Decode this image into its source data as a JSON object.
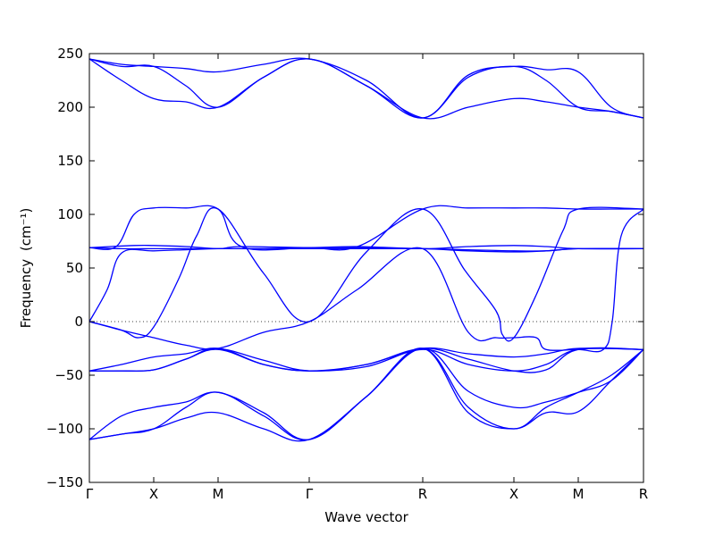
{
  "chart_data": {
    "type": "line",
    "title": "",
    "xlabel": "Wave vector",
    "ylabel": "Frequency",
    "ylabel_unit": "(cm⁻¹)",
    "ylim": [
      -150,
      250
    ],
    "yticks": [
      -150,
      -100,
      -50,
      0,
      50,
      100,
      150,
      200,
      250
    ],
    "xlim": [
      0,
      6.2
    ],
    "xticks": [
      {
        "label": "Γ",
        "pos": 0.0
      },
      {
        "label": "X",
        "pos": 0.72
      },
      {
        "label": "M",
        "pos": 1.44
      },
      {
        "label": "Γ",
        "pos": 2.46
      },
      {
        "label": "R",
        "pos": 3.73
      },
      {
        "label": "X",
        "pos": 4.75
      },
      {
        "label": "M",
        "pos": 5.47
      },
      {
        "label": "R",
        "pos": 6.2
      }
    ],
    "zero_line": {
      "value": 0,
      "style": "dotted"
    },
    "line_color": "#0000ff",
    "grid": false,
    "legend": "none",
    "series": [
      {
        "x": [
          0,
          0.36,
          0.72,
          1.08,
          1.44,
          1.95,
          2.46,
          3.1,
          3.73,
          4.24,
          4.75,
          5.11,
          5.47,
          5.84,
          6.2
        ],
        "values": [
          245,
          240,
          238,
          236,
          233,
          240,
          245,
          225,
          190,
          230,
          238,
          235,
          233,
          200,
          190
        ]
      },
      {
        "x": [
          0,
          0.36,
          0.72,
          1.08,
          1.44,
          1.95,
          2.46,
          3.1,
          3.73,
          4.24,
          4.75,
          5.11,
          5.47,
          5.84,
          6.2
        ],
        "values": [
          245,
          238,
          238,
          220,
          200,
          228,
          245,
          220,
          190,
          228,
          238,
          225,
          200,
          196,
          190
        ]
      },
      {
        "x": [
          0,
          0.36,
          0.72,
          1.08,
          1.44,
          1.95,
          2.46,
          3.1,
          3.73,
          4.24,
          4.75,
          5.11,
          5.47,
          5.84,
          6.2
        ],
        "values": [
          245,
          225,
          208,
          205,
          200,
          228,
          245,
          220,
          190,
          200,
          208,
          205,
          200,
          196,
          190
        ]
      },
      {
        "x": [
          0,
          0.3,
          0.5,
          0.72,
          1.08,
          1.44,
          1.7,
          2.46,
          3.0,
          3.73,
          4.24,
          4.75,
          5.11,
          5.47,
          5.84,
          6.2
        ],
        "values": [
          69,
          70,
          100,
          106,
          106,
          105,
          70,
          69,
          70,
          105,
          106,
          106,
          106,
          105,
          105,
          105
        ]
      },
      {
        "x": [
          0,
          0.5,
          0.72,
          1.08,
          1.44,
          1.7,
          2.46,
          3.0,
          3.73,
          4.24,
          4.75,
          5.11,
          5.47,
          6.2
        ],
        "values": [
          69,
          71,
          71,
          70,
          68,
          70,
          69,
          70,
          68,
          70,
          71,
          70,
          68,
          68
        ]
      },
      {
        "x": [
          0,
          0.36,
          0.72,
          1.08,
          1.44,
          1.95,
          2.46,
          3.0,
          3.73,
          4.24,
          4.75,
          5.11,
          5.47,
          6.2
        ],
        "values": [
          69,
          68,
          68,
          68,
          68,
          68,
          68,
          68,
          68,
          67,
          66,
          66,
          68,
          68
        ]
      },
      {
        "x": [
          0,
          0.2,
          0.36,
          0.72,
          1.08,
          1.44,
          1.95,
          2.46,
          3.0,
          3.73,
          4.24,
          4.75,
          5.11,
          5.47,
          6.2
        ],
        "values": [
          0,
          30,
          64,
          66,
          67,
          68,
          68,
          69,
          69,
          68,
          66,
          65,
          66,
          68,
          68
        ]
      },
      {
        "x": [
          0,
          0.36,
          0.55,
          0.72,
          1.0,
          1.2,
          1.44,
          1.95,
          2.46,
          3.1,
          3.73,
          4.2,
          4.55,
          4.62,
          4.75,
          5.0,
          5.3,
          5.47,
          6.2
        ],
        "values": [
          0,
          -8,
          -15,
          -5,
          40,
          80,
          105,
          45,
          0,
          65,
          105,
          48,
          10,
          -12,
          -15,
          25,
          85,
          105,
          105
        ]
      },
      {
        "x": [
          0,
          0.36,
          0.72,
          1.08,
          1.44,
          1.95,
          2.46,
          3.0,
          3.73,
          4.24,
          4.55,
          4.75,
          5.0,
          5.11,
          5.47,
          5.75,
          5.85,
          5.95,
          6.2
        ],
        "values": [
          0,
          -8,
          -15,
          -22,
          -25,
          -10,
          0,
          30,
          68,
          -10,
          -15,
          -15,
          -15,
          -26,
          -26,
          -26,
          0,
          80,
          105
        ]
      },
      {
        "x": [
          0,
          0.36,
          0.72,
          1.08,
          1.44,
          1.95,
          2.46,
          3.1,
          3.73,
          4.24,
          4.75,
          5.11,
          5.47,
          6.2
        ],
        "values": [
          -46,
          -46,
          -45,
          -35,
          -25,
          -40,
          -46,
          -40,
          -25,
          -30,
          -33,
          -30,
          -25,
          -26
        ]
      },
      {
        "x": [
          0,
          0.36,
          0.72,
          1.08,
          1.44,
          1.95,
          2.46,
          3.1,
          3.73,
          4.24,
          4.75,
          5.11,
          5.47,
          6.2
        ],
        "values": [
          -46,
          -40,
          -33,
          -30,
          -25,
          -36,
          -46,
          -40,
          -25,
          -35,
          -46,
          -45,
          -26,
          -26
        ]
      },
      {
        "x": [
          0,
          0.36,
          0.72,
          1.08,
          1.44,
          1.95,
          2.46,
          3.1,
          3.73,
          4.24,
          4.75,
          5.11,
          5.47,
          6.2
        ],
        "values": [
          -46,
          -46,
          -45,
          -35,
          -26,
          -40,
          -46,
          -42,
          -26,
          -40,
          -46,
          -40,
          -26,
          -26
        ]
      },
      {
        "x": [
          0,
          0.36,
          0.72,
          1.08,
          1.44,
          1.95,
          2.46,
          3.1,
          3.73,
          4.24,
          4.75,
          5.11,
          5.47,
          5.84,
          6.2
        ],
        "values": [
          -110,
          -88,
          -80,
          -75,
          -66,
          -85,
          -110,
          -70,
          -25,
          -65,
          -80,
          -75,
          -66,
          -55,
          -26
        ]
      },
      {
        "x": [
          0,
          0.36,
          0.72,
          1.08,
          1.44,
          1.95,
          2.46,
          3.1,
          3.73,
          4.24,
          4.75,
          5.11,
          5.47,
          5.84,
          6.2
        ],
        "values": [
          -110,
          -105,
          -100,
          -80,
          -66,
          -88,
          -110,
          -70,
          -25,
          -80,
          -100,
          -80,
          -66,
          -50,
          -26
        ]
      },
      {
        "x": [
          0,
          0.36,
          0.72,
          1.08,
          1.44,
          1.95,
          2.46,
          3.1,
          3.73,
          4.24,
          4.75,
          5.11,
          5.47,
          5.84,
          6.2
        ],
        "values": [
          -110,
          -105,
          -100,
          -90,
          -85,
          -100,
          -110,
          -70,
          -25,
          -85,
          -100,
          -85,
          -84,
          -55,
          -26
        ]
      }
    ]
  }
}
